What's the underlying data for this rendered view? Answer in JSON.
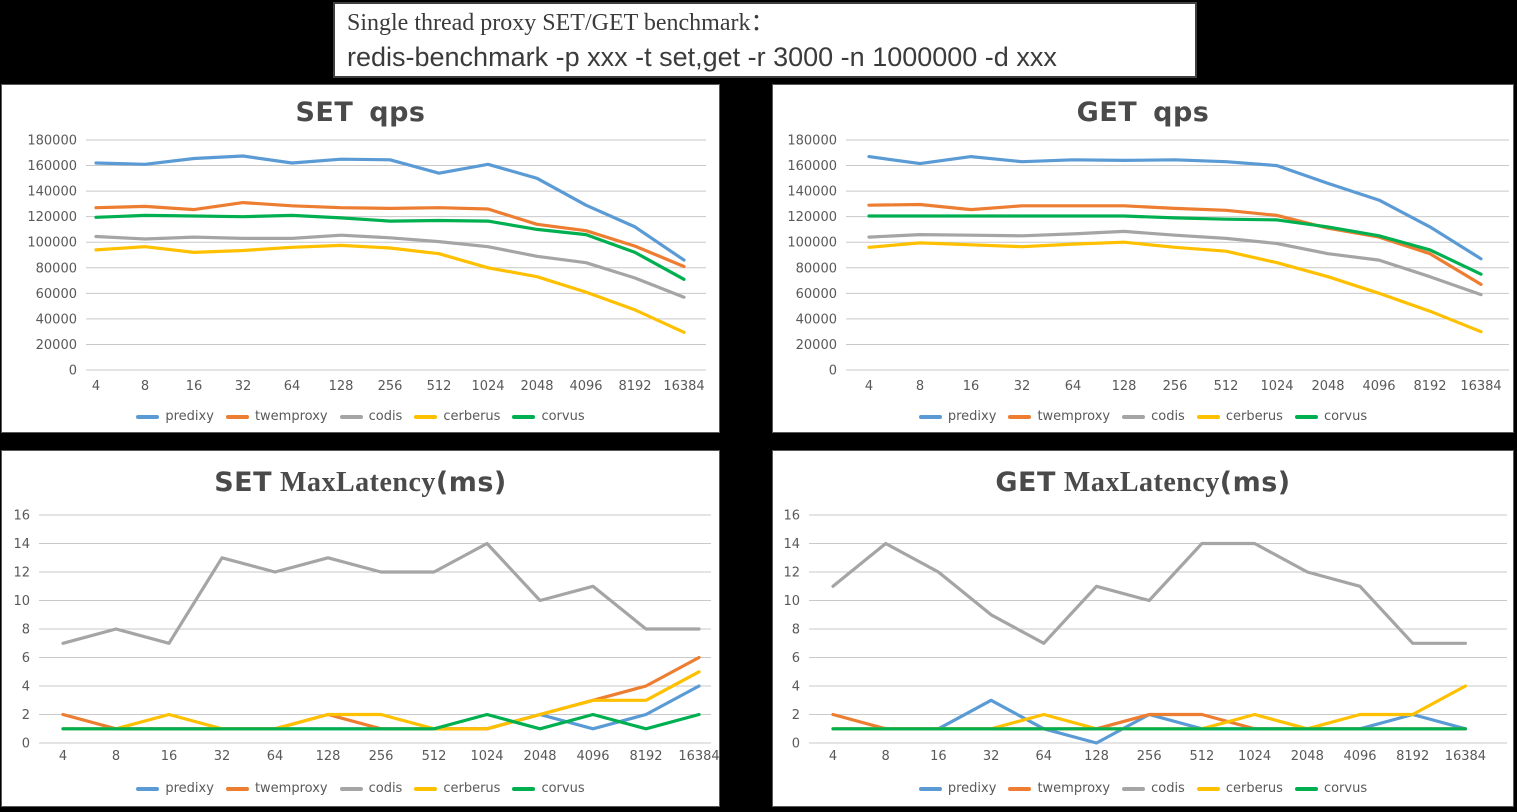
{
  "header": {
    "line1": "Single thread proxy SET/GET benchmark：",
    "line2": "redis-benchmark -p xxx -t set,get -r 3000 -n 1000000 -d xxx"
  },
  "colors": {
    "predixy": "#5B9BD5",
    "twemproxy": "#ED7D31",
    "codis": "#A5A5A5",
    "cerberus": "#FFC000",
    "corvus": "#00B050",
    "gridline": "#C9C9C9",
    "axis_text": "#595959",
    "title_text": "#4a4a4a"
  },
  "chart_data": [
    {
      "id": "set-qps",
      "type": "line",
      "title_parts": [
        {
          "text": "SET",
          "font": "sans",
          "gap_after": 16
        },
        {
          "text": "qps",
          "font": "sans",
          "gap_after": 0
        }
      ],
      "categories": [
        "4",
        "8",
        "16",
        "32",
        "64",
        "128",
        "256",
        "512",
        "1024",
        "2048",
        "4096",
        "8192",
        "16384"
      ],
      "ylim": [
        0,
        180000
      ],
      "ytick": 20000,
      "grid": true,
      "legend_position": "bottom",
      "series": [
        {
          "name": "predixy",
          "color": "#5B9BD5",
          "values": [
            162000,
            161000,
            165500,
            167500,
            162000,
            165000,
            164500,
            154000,
            161000,
            150000,
            129000,
            112000,
            86000
          ]
        },
        {
          "name": "twemproxy",
          "color": "#ED7D31",
          "values": [
            127000,
            128000,
            125500,
            131000,
            128500,
            127000,
            126500,
            127000,
            126000,
            114000,
            109000,
            97000,
            81000
          ]
        },
        {
          "name": "codis",
          "color": "#A5A5A5",
          "values": [
            104500,
            102500,
            104000,
            103000,
            103000,
            105500,
            103500,
            100500,
            96500,
            89000,
            84000,
            72000,
            57000
          ]
        },
        {
          "name": "cerberus",
          "color": "#FFC000",
          "values": [
            94000,
            96500,
            92000,
            93500,
            96000,
            97500,
            95500,
            91000,
            80000,
            73000,
            61000,
            47000,
            29500
          ]
        },
        {
          "name": "corvus",
          "color": "#00B050",
          "values": [
            119500,
            121000,
            120500,
            120000,
            121000,
            119000,
            116500,
            117000,
            116500,
            110000,
            106000,
            92000,
            71000
          ]
        }
      ]
    },
    {
      "id": "get-qps",
      "type": "line",
      "title_parts": [
        {
          "text": "GET",
          "font": "sans",
          "gap_after": 16
        },
        {
          "text": "qps",
          "font": "sans",
          "gap_after": 0
        }
      ],
      "categories": [
        "4",
        "8",
        "16",
        "32",
        "64",
        "128",
        "256",
        "512",
        "1024",
        "2048",
        "4096",
        "8192",
        "16384"
      ],
      "ylim": [
        0,
        180000
      ],
      "ytick": 20000,
      "grid": true,
      "legend_position": "bottom",
      "series": [
        {
          "name": "predixy",
          "color": "#5B9BD5",
          "values": [
            167000,
            161500,
            167000,
            163000,
            164500,
            164000,
            164500,
            163000,
            160000,
            146000,
            133000,
            112000,
            87000
          ]
        },
        {
          "name": "twemproxy",
          "color": "#ED7D31",
          "values": [
            129000,
            129500,
            125500,
            128500,
            128500,
            128500,
            126500,
            125000,
            121000,
            111000,
            104000,
            91000,
            67000
          ]
        },
        {
          "name": "codis",
          "color": "#A5A5A5",
          "values": [
            104000,
            106000,
            105500,
            105000,
            106500,
            108500,
            105500,
            103000,
            99000,
            91000,
            86000,
            73000,
            59000
          ]
        },
        {
          "name": "cerberus",
          "color": "#FFC000",
          "values": [
            96000,
            99500,
            98000,
            96500,
            98500,
            100000,
            96000,
            93000,
            84000,
            73000,
            60000,
            46000,
            30000
          ]
        },
        {
          "name": "corvus",
          "color": "#00B050",
          "values": [
            120500,
            120500,
            120500,
            120500,
            120500,
            120500,
            119000,
            118000,
            117500,
            112000,
            105000,
            94000,
            75000
          ]
        }
      ]
    },
    {
      "id": "set-lat",
      "type": "line",
      "title_parts": [
        {
          "text": "SET",
          "font": "sans",
          "gap_after": 8
        },
        {
          "text": "MaxLatency",
          "font": "serif",
          "gap_after": 0
        },
        {
          "text": "(ms)",
          "font": "sans",
          "gap_after": 0
        }
      ],
      "categories": [
        "4",
        "8",
        "16",
        "32",
        "64",
        "128",
        "256",
        "512",
        "1024",
        "2048",
        "4096",
        "8192",
        "16384"
      ],
      "ylim": [
        0,
        16
      ],
      "ytick": 2,
      "grid": true,
      "legend_position": "bottom",
      "series": [
        {
          "name": "predixy",
          "color": "#5B9BD5",
          "values": [
            1,
            1,
            1,
            1,
            1,
            1,
            1,
            1,
            1,
            2,
            1,
            2,
            4
          ]
        },
        {
          "name": "twemproxy",
          "color": "#ED7D31",
          "values": [
            2,
            1,
            1,
            1,
            1,
            2,
            1,
            1,
            1,
            2,
            3,
            4,
            6
          ]
        },
        {
          "name": "codis",
          "color": "#A5A5A5",
          "values": [
            7,
            8,
            7,
            13,
            12,
            13,
            12,
            12,
            14,
            10,
            11,
            8,
            8
          ]
        },
        {
          "name": "cerberus",
          "color": "#FFC000",
          "values": [
            1,
            1,
            2,
            1,
            1,
            2,
            2,
            1,
            1,
            2,
            3,
            3,
            5
          ]
        },
        {
          "name": "corvus",
          "color": "#00B050",
          "values": [
            1,
            1,
            1,
            1,
            1,
            1,
            1,
            1,
            2,
            1,
            2,
            1,
            2
          ]
        }
      ]
    },
    {
      "id": "get-lat",
      "type": "line",
      "title_parts": [
        {
          "text": "GET",
          "font": "sans",
          "gap_after": 8
        },
        {
          "text": "MaxLatency",
          "font": "serif",
          "gap_after": 0
        },
        {
          "text": "(ms)",
          "font": "sans",
          "gap_after": 0
        }
      ],
      "categories": [
        "4",
        "8",
        "16",
        "32",
        "64",
        "128",
        "256",
        "512",
        "1024",
        "2048",
        "4096",
        "8192",
        "16384"
      ],
      "ylim": [
        0,
        16
      ],
      "ytick": 2,
      "grid": true,
      "legend_position": "bottom",
      "series": [
        {
          "name": "predixy",
          "color": "#5B9BD5",
          "values": [
            1,
            1,
            1,
            3,
            1,
            0,
            2,
            1,
            1,
            1,
            1,
            2,
            1
          ]
        },
        {
          "name": "twemproxy",
          "color": "#ED7D31",
          "values": [
            2,
            1,
            1,
            1,
            1,
            1,
            2,
            2,
            1,
            1,
            1,
            1,
            1
          ]
        },
        {
          "name": "codis",
          "color": "#A5A5A5",
          "values": [
            11,
            14,
            12,
            9,
            7,
            11,
            10,
            14,
            14,
            12,
            11,
            7,
            7
          ]
        },
        {
          "name": "cerberus",
          "color": "#FFC000",
          "values": [
            1,
            1,
            1,
            1,
            2,
            1,
            1,
            1,
            2,
            1,
            2,
            2,
            4
          ]
        },
        {
          "name": "corvus",
          "color": "#00B050",
          "values": [
            1,
            1,
            1,
            1,
            1,
            1,
            1,
            1,
            1,
            1,
            1,
            1,
            1
          ]
        }
      ]
    }
  ]
}
